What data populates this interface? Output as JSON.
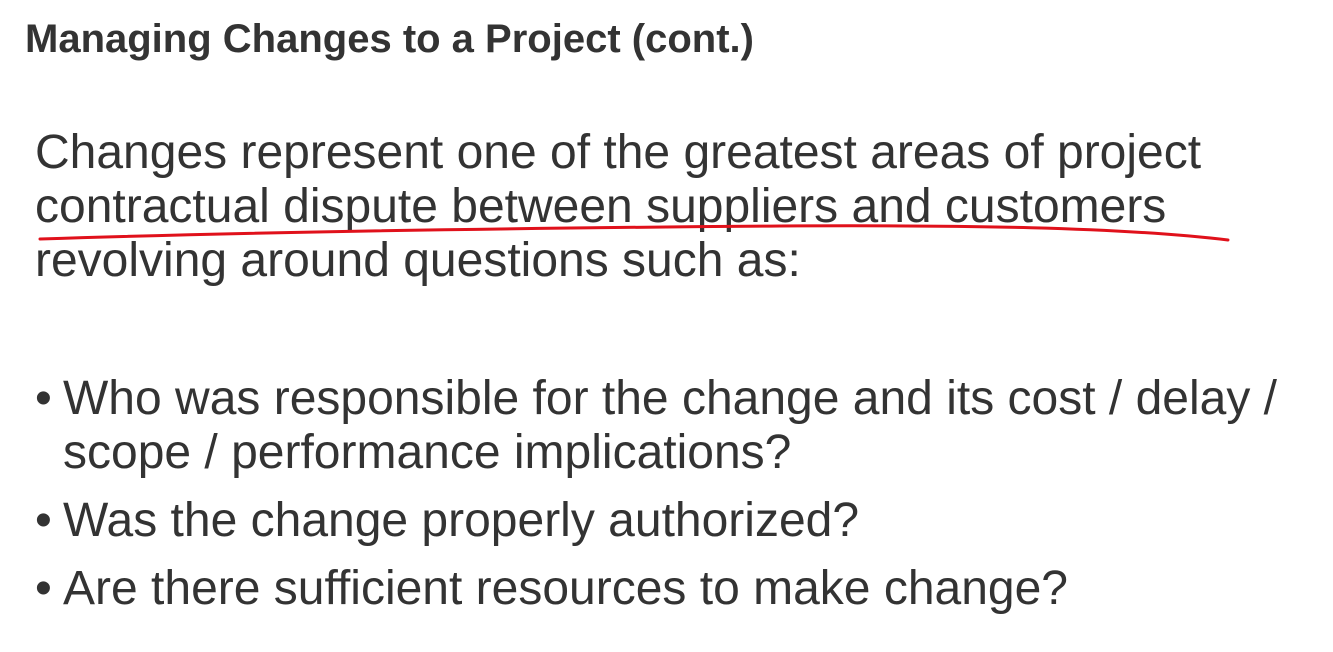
{
  "slide": {
    "title": "Managing Changes to a Project (cont.)",
    "intro_lines": [
      "Changes represent one of the greatest areas of project",
      "contractual dispute between suppliers and customers",
      "revolving around questions such as:"
    ],
    "bullet_glyph": "•",
    "bullets": [
      {
        "lines": [
          "Who was responsible for the change and its cost / delay /",
          "scope / performance implications?"
        ]
      },
      {
        "lines": [
          "Was the change properly authorized?"
        ]
      },
      {
        "lines": [
          "Are there sufficient resources to make change?"
        ]
      }
    ]
  },
  "annotation": {
    "ink_color": "#e0111b"
  }
}
